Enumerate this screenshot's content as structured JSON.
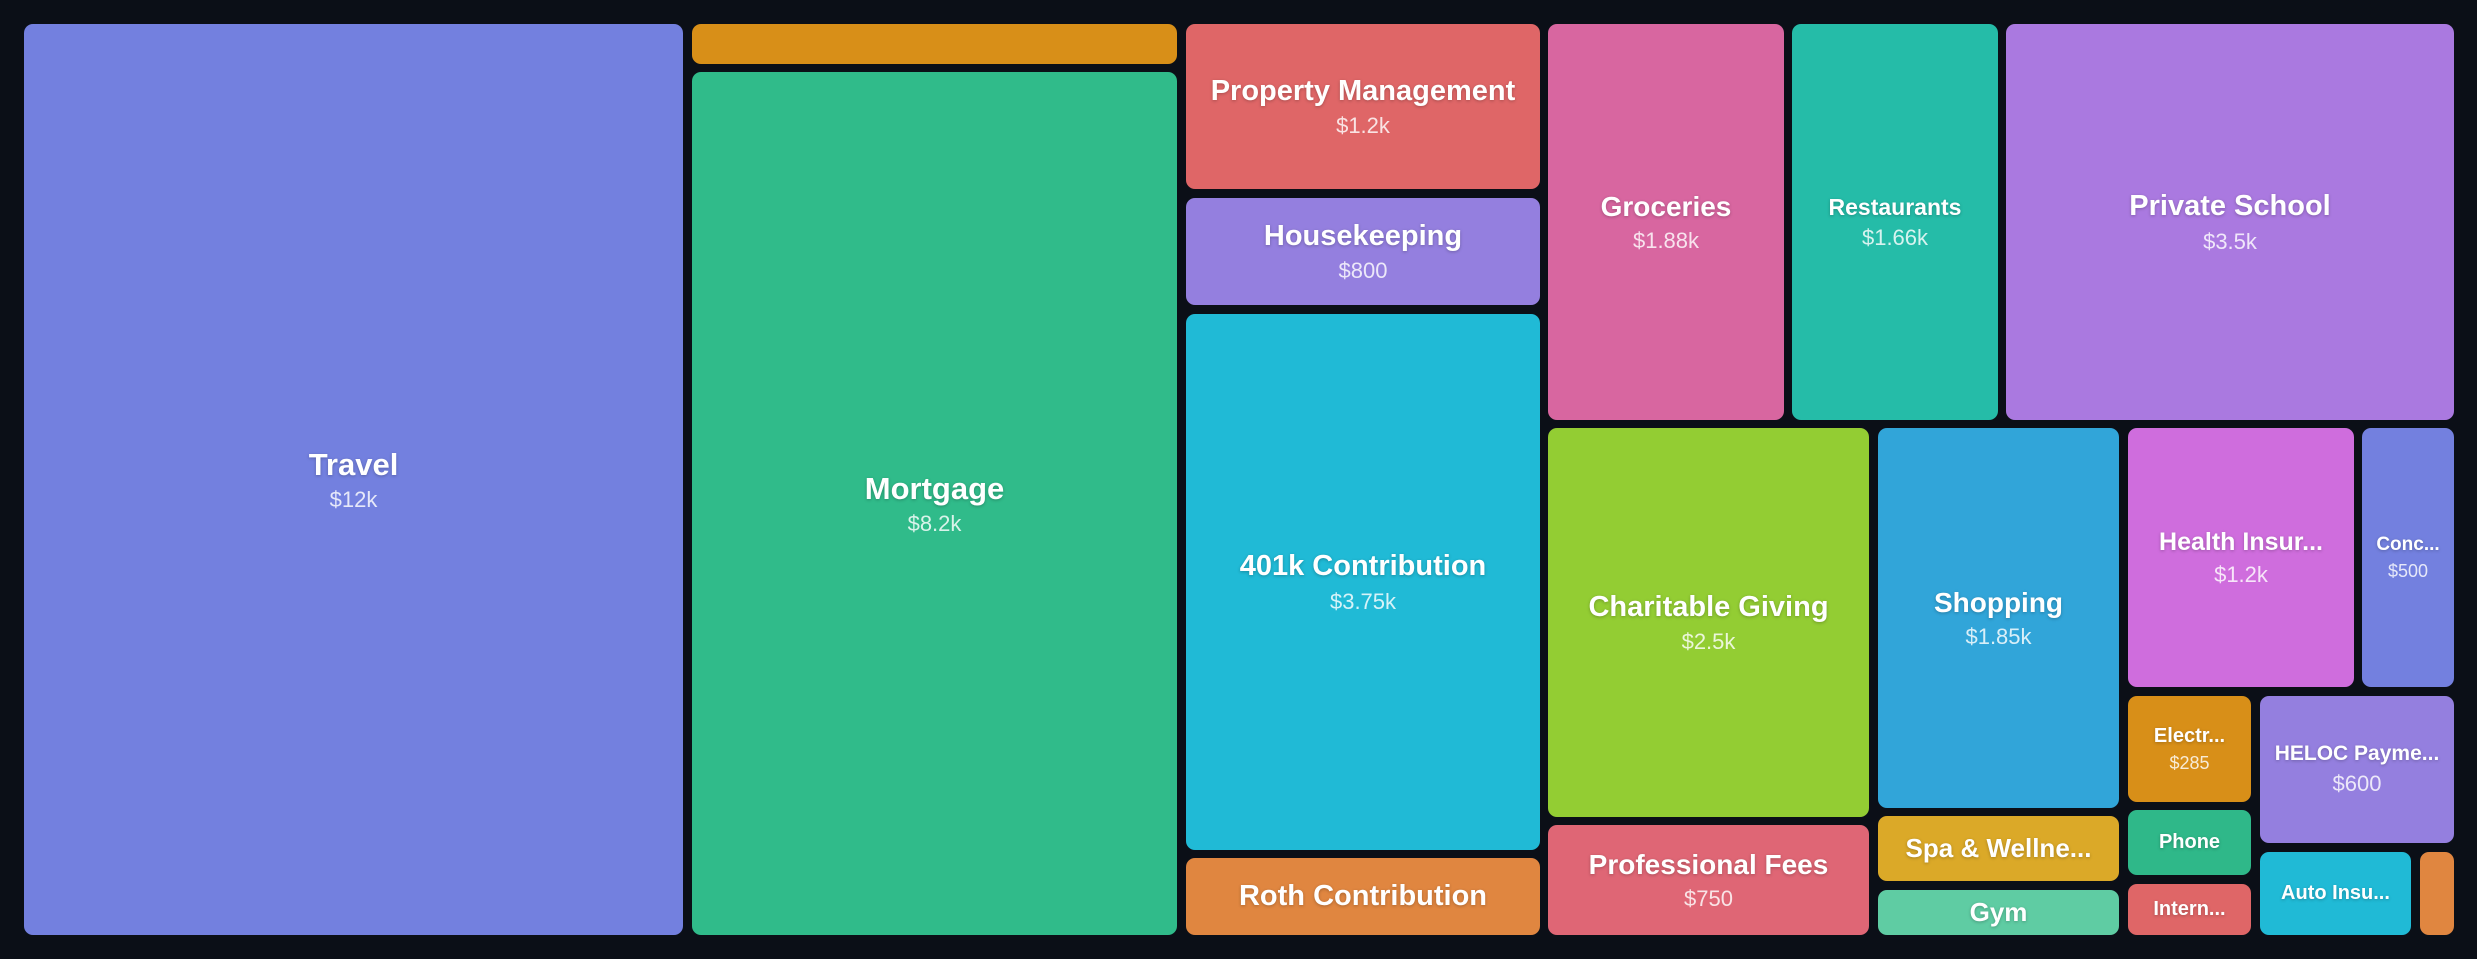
{
  "chart_data": {
    "type": "treemap",
    "items": [
      {
        "name": "Travel",
        "value": 12000,
        "label": "$12k",
        "color": "#7380df"
      },
      {
        "name": "Mortgage",
        "value": 8200,
        "label": "$8.2k",
        "color": "#30bb8a"
      },
      {
        "name": "",
        "value": null,
        "label": "",
        "color": "#d88f18"
      },
      {
        "name": "Property Management",
        "value": 1200,
        "label": "$1.2k",
        "color": "#df6667"
      },
      {
        "name": "Housekeeping",
        "value": 800,
        "label": "$800",
        "color": "#947fdf"
      },
      {
        "name": "401k Contribution",
        "value": 3750,
        "label": "$3.75k",
        "color": "#20bad6"
      },
      {
        "name": "Roth Contribution",
        "value": null,
        "label": "",
        "color": "#e08640"
      },
      {
        "name": "Groceries",
        "value": 1880,
        "label": "$1.88k",
        "color": "#d866a0"
      },
      {
        "name": "Restaurants",
        "value": 1660,
        "label": "$1.66k",
        "color": "#25bca8"
      },
      {
        "name": "Private School",
        "value": 3500,
        "label": "$3.5k",
        "color": "#aa79e0"
      },
      {
        "name": "Charitable Giving",
        "value": 2500,
        "label": "$2.5k",
        "color": "#93cd33"
      },
      {
        "name": "Shopping",
        "value": 1850,
        "label": "$1.85k",
        "color": "#31a5d9"
      },
      {
        "name": "Health Insur...",
        "value": 1200,
        "label": "$1.2k",
        "color": "#cf6ddd"
      },
      {
        "name": "Conc...",
        "value": 500,
        "label": "$500",
        "color": "#7380df"
      },
      {
        "name": "Electr...",
        "value": 285,
        "label": "$285",
        "color": "#d88f18"
      },
      {
        "name": "HELOC Payme...",
        "value": 600,
        "label": "$600",
        "color": "#947fdf"
      },
      {
        "name": "Phone",
        "value": null,
        "label": "",
        "color": "#2fb889"
      },
      {
        "name": "Intern...",
        "value": null,
        "label": "",
        "color": "#df6667"
      },
      {
        "name": "Auto Insu...",
        "value": null,
        "label": "",
        "color": "#20bad6"
      },
      {
        "name": "",
        "value": null,
        "label": "",
        "color": "#e08640"
      },
      {
        "name": "Professional Fees",
        "value": 750,
        "label": "$750",
        "color": "#df6675"
      },
      {
        "name": "Spa & Wellne...",
        "value": null,
        "label": "",
        "color": "#dba928"
      },
      {
        "name": "Gym",
        "value": null,
        "label": "",
        "color": "#5fcca3"
      }
    ]
  }
}
